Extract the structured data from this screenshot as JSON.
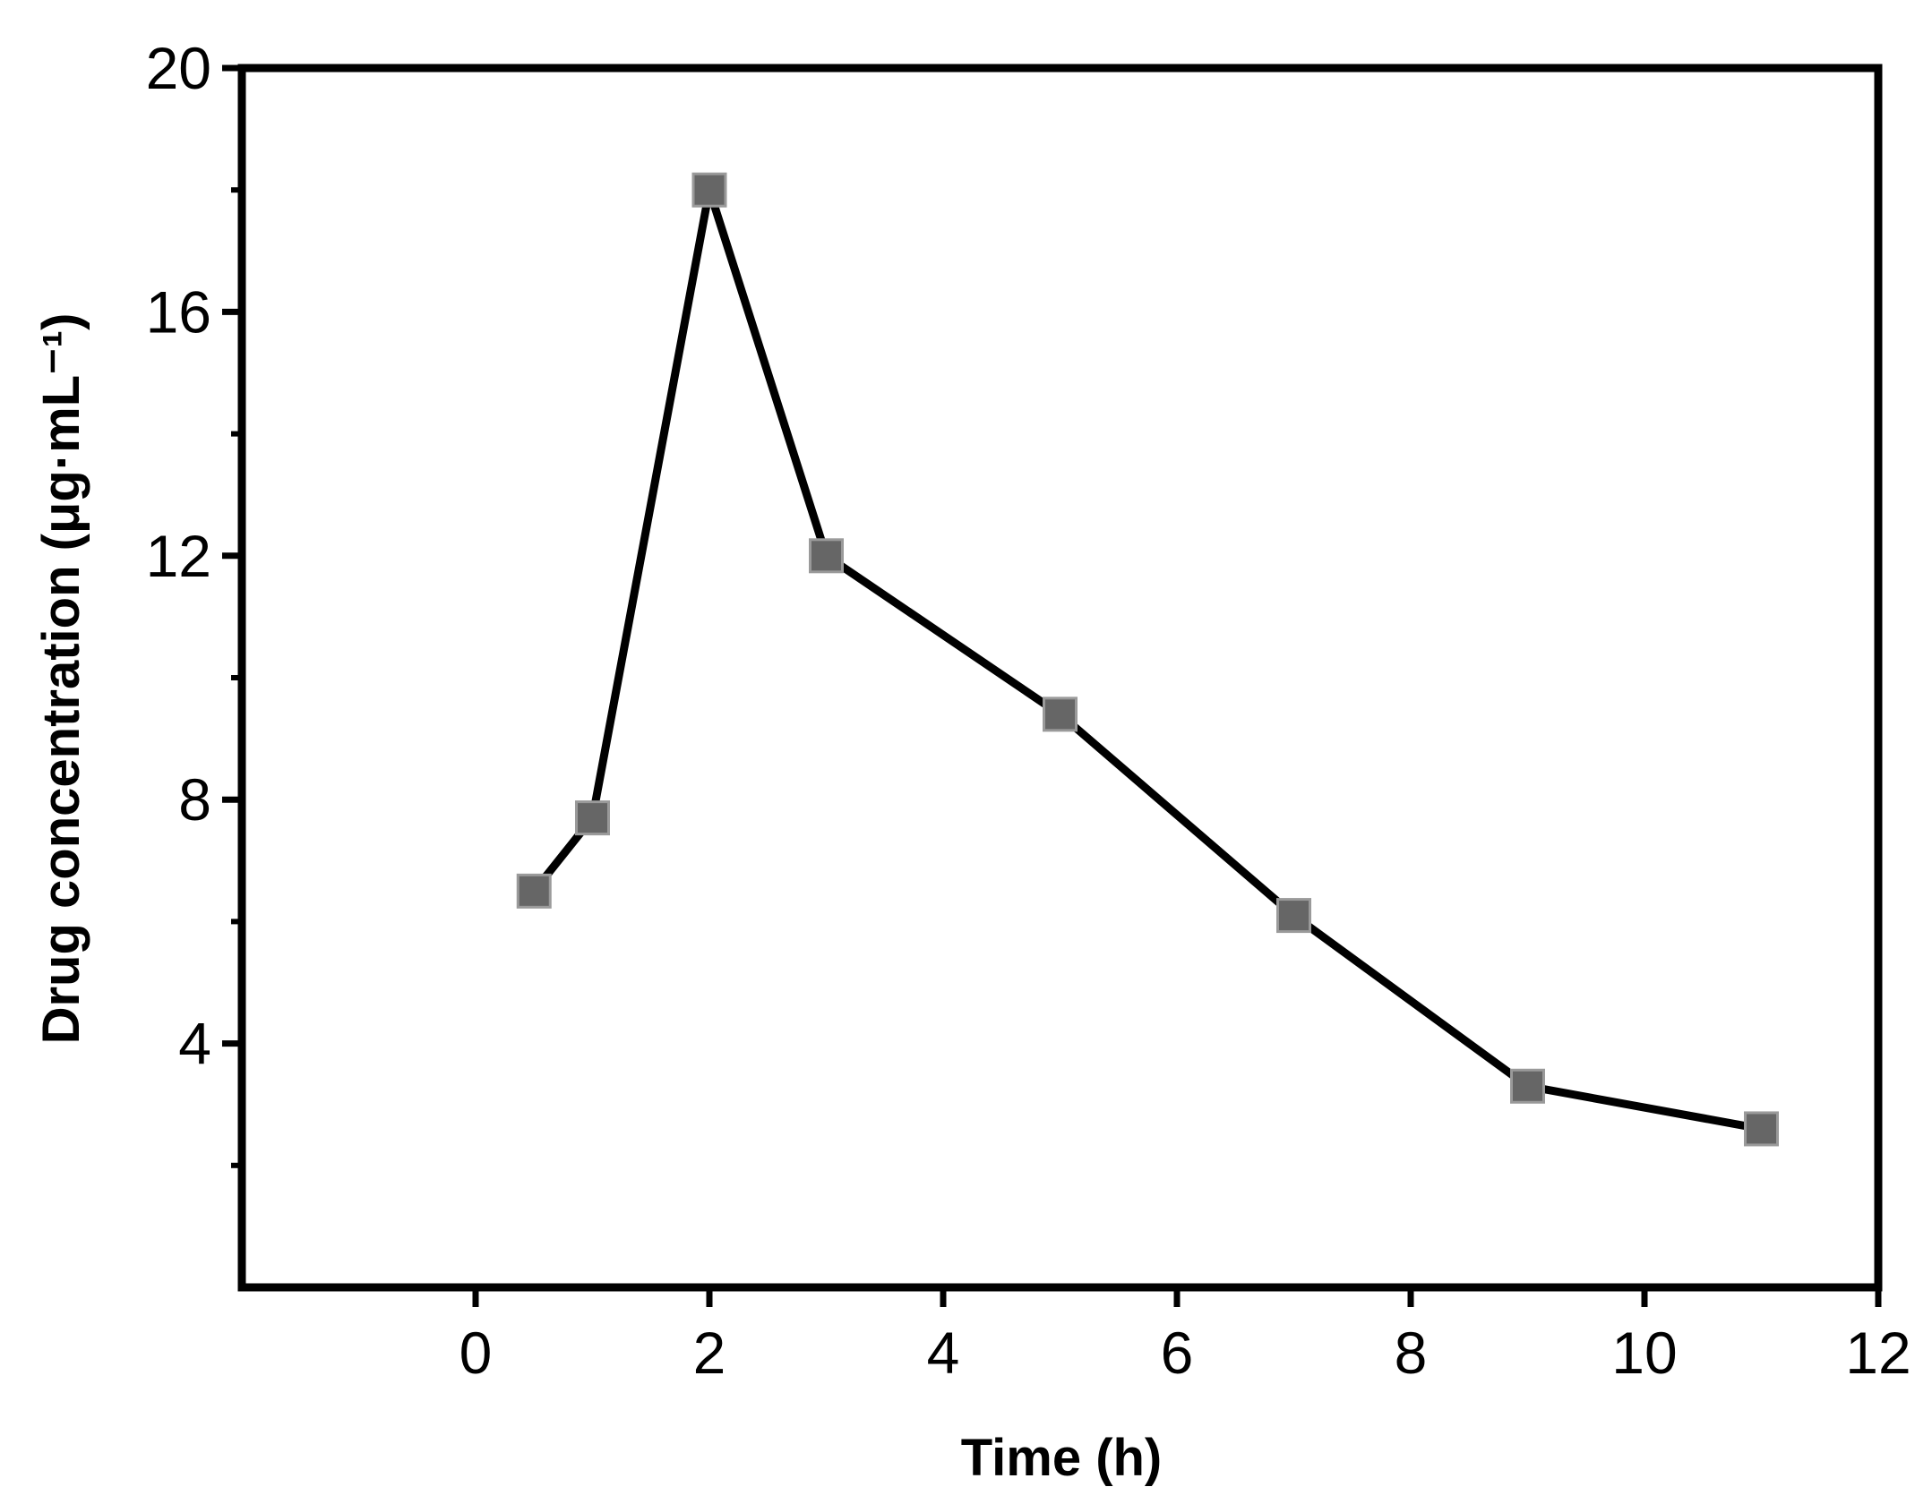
{
  "chart_data": {
    "type": "line",
    "title": "",
    "xlabel": "Time (h)",
    "ylabel": "Drug concentration (μg·mL⁻¹)",
    "xlim": [
      -2,
      12
    ],
    "ylim": [
      0,
      20
    ],
    "x_ticks": [
      "0",
      "2",
      "4",
      "6",
      "8",
      "10",
      "12"
    ],
    "y_ticks": [
      "4",
      "8",
      "12",
      "16",
      "20"
    ],
    "x_tick_values": [
      0,
      2,
      4,
      6,
      8,
      10,
      12
    ],
    "y_tick_values": [
      4,
      8,
      12,
      16,
      20
    ],
    "y_minor_ticks": [
      2,
      6,
      10,
      14,
      18
    ],
    "grid": false,
    "legend": "none",
    "series": [
      {
        "x": [
          0.5,
          1,
          2,
          3,
          5,
          7,
          9,
          11
        ],
        "y": [
          6.5,
          7.7,
          18.0,
          12.0,
          9.4,
          6.1,
          3.3,
          2.6
        ],
        "line_color": "#000000",
        "marker": "square",
        "marker_color": "#666666"
      }
    ]
  }
}
